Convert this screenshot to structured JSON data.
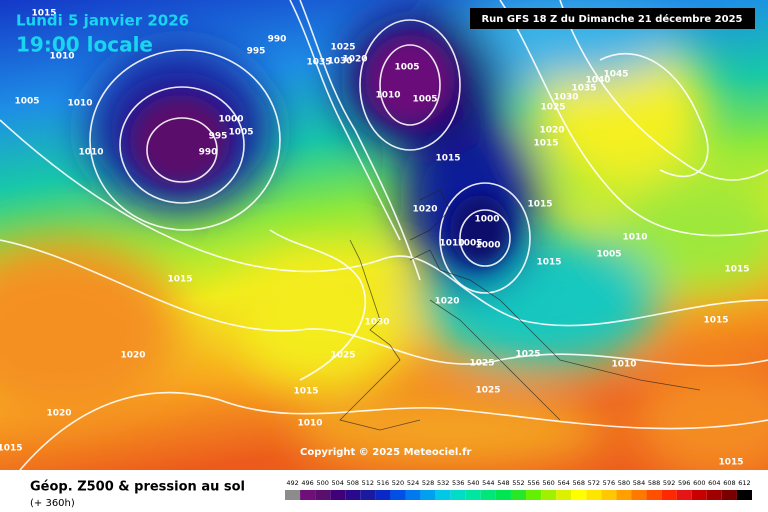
{
  "header": {
    "valid_date": "Lundi 5 janvier 2026",
    "local_time": "19:00 locale",
    "run": "Run GFS 18 Z du Dimanche 21 décembre 2025"
  },
  "copyright": "Copyright © 2025 Meteociel.fr",
  "footer": {
    "title": "Géop. Z500 & pression au sol",
    "lead": "(+ 360h)"
  },
  "isobar_labels": [
    "1015",
    "1010",
    "1005",
    "1010",
    "1010",
    "995",
    "990",
    "1025",
    "1035",
    "1030",
    "1020",
    "1005",
    "1010",
    "1005",
    "995",
    "990",
    "1000",
    "1005",
    "1015",
    "1020",
    "1000",
    "1010",
    "1005",
    "1000",
    "1015",
    "1015",
    "1005",
    "1010",
    "1015",
    "1015",
    "1010",
    "1015",
    "1020",
    "1020",
    "1015",
    "1020",
    "1030",
    "1025",
    "1025",
    "1025",
    "1025",
    "1015",
    "1010",
    "1015",
    "1045",
    "1040",
    "1035",
    "1030",
    "1025",
    "1020",
    "1015",
    "1010"
  ],
  "scale": {
    "values": [
      492,
      496,
      500,
      504,
      508,
      512,
      516,
      520,
      524,
      528,
      532,
      536,
      540,
      544,
      548,
      552,
      556,
      560,
      564,
      568,
      572,
      576,
      580,
      584,
      588,
      592,
      596,
      600,
      604,
      608,
      612
    ],
    "colors": [
      "#8c8c8c",
      "#6e0f7a",
      "#5a0f6e",
      "#40007a",
      "#2a0a8c",
      "#1a1aa0",
      "#0a28c8",
      "#0050e6",
      "#0078f0",
      "#00a0f0",
      "#00c8e6",
      "#00dcc8",
      "#00e6a0",
      "#00e678",
      "#00e650",
      "#28e628",
      "#64f000",
      "#a0f000",
      "#dcf000",
      "#ffff00",
      "#ffe600",
      "#ffc800",
      "#ffa000",
      "#ff7800",
      "#ff5000",
      "#ff2800",
      "#e61414",
      "#c80000",
      "#a00000",
      "#780000",
      "#000000"
    ]
  }
}
